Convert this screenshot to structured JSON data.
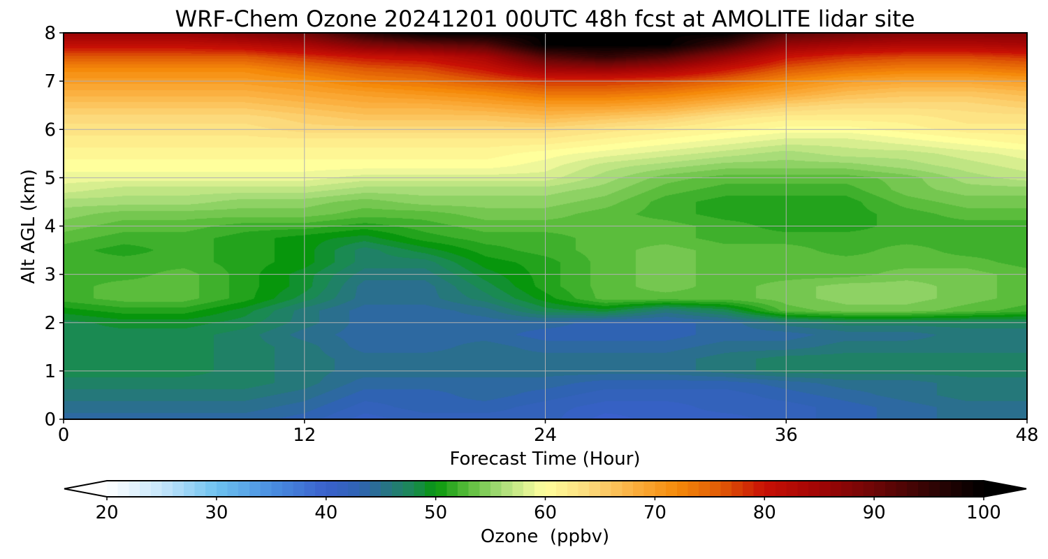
{
  "chart_data": {
    "type": "heatmap",
    "title": "WRF-Chem Ozone  20241201 00UTC 48h fcst at AMOLITE lidar site",
    "xlabel": "Forecast Time (Hour)",
    "ylabel": "Alt AGL (km)",
    "xlim": [
      0,
      48
    ],
    "ylim": [
      0,
      8
    ],
    "x_ticks": [
      "0",
      "12",
      "24",
      "36",
      "48"
    ],
    "y_ticks": [
      "0",
      "1",
      "2",
      "3",
      "4",
      "5",
      "6",
      "7",
      "8"
    ],
    "grid": true,
    "x_hours": [
      0,
      3,
      6,
      9,
      12,
      15,
      18,
      21,
      24,
      27,
      30,
      33,
      36,
      39,
      42,
      45,
      48
    ],
    "z_km": [
      0,
      0.25,
      0.5,
      0.75,
      1,
      1.25,
      1.5,
      1.75,
      2,
      2.25,
      2.5,
      2.75,
      3,
      3.25,
      3.5,
      3.75,
      4,
      4.25,
      4.5,
      4.75,
      5,
      5.25,
      5.5,
      5.75,
      6,
      6.25,
      6.5,
      6.75,
      7,
      7.25,
      7.5,
      7.75,
      8
    ],
    "ozone_ppbv_by_altitude": [
      [
        44,
        44,
        44,
        44,
        43,
        41,
        42,
        42,
        42,
        40,
        41,
        41,
        42,
        43,
        44,
        45,
        45
      ],
      [
        45,
        45,
        45,
        45,
        44,
        42,
        43,
        43,
        42,
        41,
        41,
        42,
        42,
        43,
        44,
        45,
        45
      ],
      [
        46,
        46,
        46,
        46,
        45,
        43,
        43,
        44,
        43,
        42,
        42,
        42,
        43,
        44,
        45,
        46,
        46
      ],
      [
        47,
        47,
        47,
        47,
        46,
        44,
        44,
        44,
        44,
        43,
        43,
        43,
        44,
        45,
        45,
        46,
        46
      ],
      [
        48,
        48,
        48,
        47,
        46,
        45,
        45,
        45,
        45,
        45,
        45,
        46,
        47,
        47,
        47,
        47,
        47
      ],
      [
        48,
        48,
        48,
        47,
        46,
        45,
        45,
        45,
        45,
        45,
        45,
        46,
        47,
        47,
        47,
        47,
        47
      ],
      [
        48,
        48,
        48,
        47,
        46,
        44,
        44,
        45,
        44,
        44,
        44,
        45,
        45,
        46,
        46,
        46,
        46
      ],
      [
        48,
        48,
        48,
        47,
        45,
        44,
        44,
        44,
        43,
        43,
        43,
        44,
        44,
        45,
        45,
        46,
        46
      ],
      [
        48,
        49,
        49,
        48,
        46,
        44,
        44,
        44,
        44,
        43,
        43,
        44,
        46,
        47,
        47,
        47,
        47
      ],
      [
        50,
        51,
        51,
        49,
        46,
        44,
        44,
        45,
        48,
        49,
        46,
        48,
        53,
        54,
        54,
        53,
        52
      ],
      [
        52,
        53,
        53,
        51,
        48,
        45,
        45,
        47,
        50,
        53,
        53,
        53,
        54,
        55,
        55,
        54,
        53
      ],
      [
        52,
        53,
        53,
        51,
        49,
        45,
        45,
        48,
        51,
        53,
        54,
        53,
        54,
        55,
        55,
        54,
        53
      ],
      [
        52,
        52,
        53,
        51,
        49,
        46,
        46,
        49,
        51,
        53,
        54,
        53,
        53,
        53,
        54,
        54,
        53
      ],
      [
        52,
        52,
        52,
        51,
        50,
        47,
        47,
        50,
        51,
        53,
        54,
        53,
        53,
        53,
        53,
        53,
        52
      ],
      [
        52,
        51,
        52,
        51,
        50,
        47,
        49,
        51,
        52,
        53,
        54,
        53,
        53,
        52,
        53,
        52,
        52
      ],
      [
        53,
        52,
        52,
        51,
        50,
        49,
        51,
        52,
        52,
        53,
        53,
        52,
        52,
        52,
        52,
        52,
        52
      ],
      [
        54,
        53,
        53,
        52,
        52,
        51,
        52,
        53,
        53,
        53,
        53,
        52,
        51,
        51,
        52,
        52,
        52
      ],
      [
        55,
        54,
        54,
        54,
        54,
        53,
        53,
        54,
        54,
        53,
        52,
        51,
        51,
        51,
        52,
        53,
        53
      ],
      [
        56,
        56,
        56,
        55,
        55,
        54,
        55,
        55,
        55,
        54,
        52,
        51,
        51,
        51,
        53,
        54,
        54
      ],
      [
        58,
        57,
        57,
        57,
        57,
        56,
        56,
        56,
        56,
        55,
        53,
        52,
        52,
        52,
        54,
        55,
        55
      ],
      [
        59,
        59,
        59,
        59,
        59,
        58,
        58,
        58,
        58,
        56,
        54,
        53,
        53,
        53,
        54,
        56,
        57
      ],
      [
        60,
        60,
        60,
        60,
        60,
        60,
        60,
        60,
        59,
        57,
        56,
        55,
        55,
        55,
        56,
        57,
        58
      ],
      [
        61,
        61,
        61,
        61,
        61,
        61,
        61,
        61,
        60,
        59,
        58,
        57,
        56,
        57,
        57,
        58,
        59
      ],
      [
        62,
        62,
        62,
        62,
        62,
        62,
        62,
        62,
        62,
        61,
        60,
        59,
        58,
        58,
        59,
        60,
        61
      ],
      [
        63,
        63,
        63,
        63,
        64,
        64,
        64,
        64,
        64,
        63,
        62,
        61,
        60,
        60,
        61,
        62,
        62
      ],
      [
        64,
        64,
        64,
        64,
        65,
        66,
        66,
        66,
        67,
        66,
        65,
        63,
        62,
        62,
        62,
        63,
        63
      ],
      [
        66,
        66,
        66,
        66,
        67,
        68,
        68,
        69,
        70,
        70,
        69,
        67,
        65,
        64,
        64,
        64,
        65
      ],
      [
        68,
        68,
        68,
        68,
        69,
        70,
        71,
        72,
        74,
        74,
        73,
        71,
        69,
        67,
        66,
        66,
        67
      ],
      [
        70,
        70,
        70,
        70,
        71,
        73,
        74,
        76,
        78,
        78,
        77,
        75,
        72,
        70,
        69,
        69,
        70
      ],
      [
        72,
        72,
        72,
        72,
        74,
        76,
        77,
        80,
        85,
        86,
        84,
        80,
        76,
        74,
        73,
        73,
        74
      ],
      [
        76,
        76,
        76,
        76,
        78,
        80,
        81,
        84,
        92,
        95,
        92,
        86,
        80,
        78,
        77,
        77,
        78
      ],
      [
        81,
        81,
        81,
        82,
        84,
        88,
        90,
        92,
        100,
        100,
        100,
        94,
        86,
        84,
        83,
        83,
        84
      ],
      [
        86,
        86,
        86,
        88,
        90,
        96,
        100,
        100,
        100,
        100,
        100,
        100,
        92,
        90,
        88,
        88,
        88
      ]
    ],
    "colorbar": {
      "label": "Ozone  (ppbv)",
      "ticks": [
        "20",
        "30",
        "40",
        "50",
        "60",
        "70",
        "80",
        "90",
        "100"
      ],
      "min": 20,
      "max": 100,
      "extend": "both",
      "stops": [
        {
          "v": 20,
          "c": "#ffffff"
        },
        {
          "v": 25,
          "c": "#c6e6fb"
        },
        {
          "v": 30,
          "c": "#6ec2f0"
        },
        {
          "v": 35,
          "c": "#4a8fe0"
        },
        {
          "v": 40,
          "c": "#3a60cc"
        },
        {
          "v": 43,
          "c": "#2f63b3"
        },
        {
          "v": 45,
          "c": "#2a6f8e"
        },
        {
          "v": 48,
          "c": "#1a8a52"
        },
        {
          "v": 50,
          "c": "#07960c"
        },
        {
          "v": 53,
          "c": "#5bbd3c"
        },
        {
          "v": 56,
          "c": "#a8dc78"
        },
        {
          "v": 59,
          "c": "#eef79a"
        },
        {
          "v": 60,
          "c": "#ffff9c"
        },
        {
          "v": 64,
          "c": "#fcda7c"
        },
        {
          "v": 68,
          "c": "#fbb040"
        },
        {
          "v": 72,
          "c": "#f58a0a"
        },
        {
          "v": 76,
          "c": "#e05a05"
        },
        {
          "v": 80,
          "c": "#c81005"
        },
        {
          "v": 85,
          "c": "#a00505"
        },
        {
          "v": 90,
          "c": "#6e0606"
        },
        {
          "v": 95,
          "c": "#330404"
        },
        {
          "v": 100,
          "c": "#000000"
        }
      ]
    }
  }
}
